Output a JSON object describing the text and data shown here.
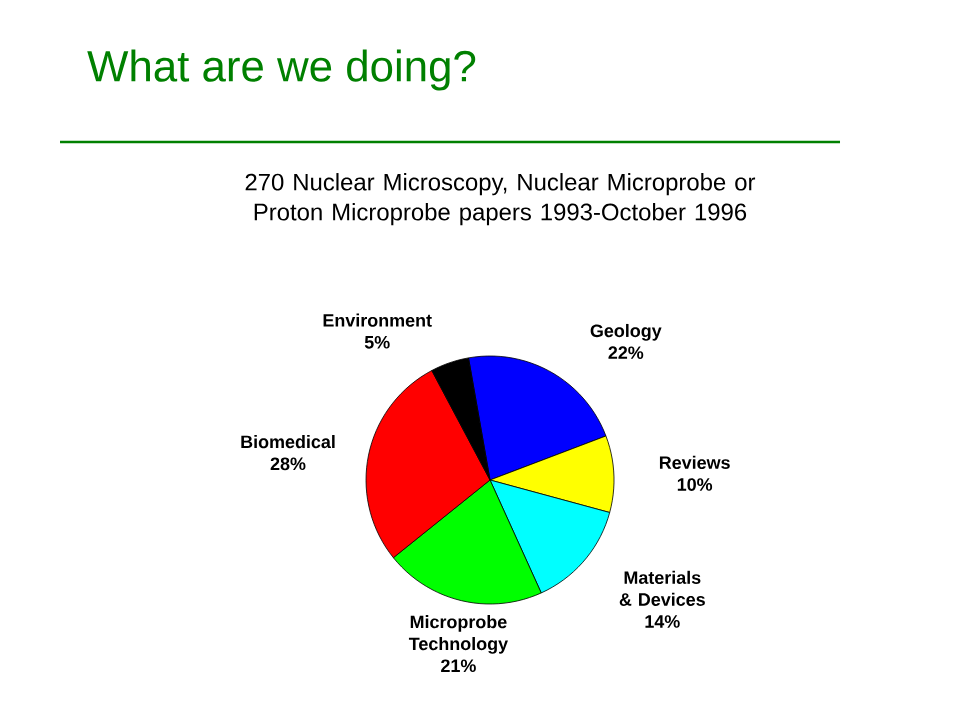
{
  "chart_data": {
    "type": "pie",
    "title": "What are we doing?",
    "subtitle": "270 Nuclear Microscopy, Nuclear Microprobe or Proton Microprobe papers 1993-October 1996",
    "categories": [
      "Geology",
      "Reviews",
      "Materials & Devices",
      "Microprobe Technology",
      "Biomedical",
      "Environment"
    ],
    "values": [
      22,
      10,
      14,
      21,
      28,
      5
    ],
    "value_labels": [
      "22%",
      "10%",
      "14%",
      "21%",
      "28%",
      "5%"
    ],
    "colors": [
      "#0000ff",
      "#ffff00",
      "#00ffff",
      "#00ff00",
      "#ff0000",
      "#000000"
    ]
  }
}
